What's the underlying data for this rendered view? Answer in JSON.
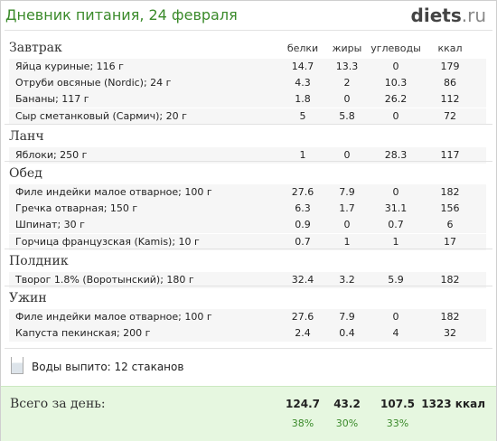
{
  "header": {
    "title": "Дневник питания, 24 февраля",
    "logo_main": "diets",
    "logo_tld": ".ru"
  },
  "columns": {
    "protein": "белки",
    "fat": "жиры",
    "carbs": "углеводы",
    "kcal": "ккал"
  },
  "meals": [
    {
      "name": "Завтрак",
      "items": [
        {
          "food": "Яйца куриные; 116 г",
          "protein": "14.7",
          "fat": "13.3",
          "carbs": "0",
          "kcal": "179"
        },
        {
          "food": "Отруби овсяные (Nordic); 24 г",
          "protein": "4.3",
          "fat": "2",
          "carbs": "10.3",
          "kcal": "86"
        },
        {
          "food": "Бананы; 117 г",
          "protein": "1.8",
          "fat": "0",
          "carbs": "26.2",
          "kcal": "112"
        },
        {
          "food": "Сыр сметанковый (Сармич); 20 г",
          "protein": "5",
          "fat": "5.8",
          "carbs": "0",
          "kcal": "72"
        }
      ]
    },
    {
      "name": "Ланч",
      "items": [
        {
          "food": "Яблоки; 250 г",
          "protein": "1",
          "fat": "0",
          "carbs": "28.3",
          "kcal": "117"
        }
      ]
    },
    {
      "name": "Обед",
      "items": [
        {
          "food": "Филе индейки малое отварное; 100 г",
          "protein": "27.6",
          "fat": "7.9",
          "carbs": "0",
          "kcal": "182"
        },
        {
          "food": "Гречка отварная; 150 г",
          "protein": "6.3",
          "fat": "1.7",
          "carbs": "31.1",
          "kcal": "156"
        },
        {
          "food": "Шпинат; 30 г",
          "protein": "0.9",
          "fat": "0",
          "carbs": "0.7",
          "kcal": "6"
        },
        {
          "food": "Горчица французская (Kamis); 10 г",
          "protein": "0.7",
          "fat": "1",
          "carbs": "1",
          "kcal": "17"
        }
      ]
    },
    {
      "name": "Полдник",
      "items": [
        {
          "food": "Творог 1.8% (Воротынский); 180 г",
          "protein": "32.4",
          "fat": "3.2",
          "carbs": "5.9",
          "kcal": "182"
        }
      ]
    },
    {
      "name": "Ужин",
      "items": [
        {
          "food": "Филе индейки малое отварное; 100 г",
          "protein": "27.6",
          "fat": "7.9",
          "carbs": "0",
          "kcal": "182"
        },
        {
          "food": "Капуста пекинская; 200 г",
          "protein": "2.4",
          "fat": "0.4",
          "carbs": "4",
          "kcal": "32"
        }
      ]
    }
  ],
  "water": {
    "icon": "glass-icon",
    "label": "Воды выпито: 12 стаканов"
  },
  "total": {
    "label": "Всего за день:",
    "protein": "124.7",
    "fat": "43.2",
    "carbs": "107.5",
    "kcal": "1323 ккал",
    "protein_pct": "38%",
    "fat_pct": "30%",
    "carbs_pct": "33%"
  }
}
